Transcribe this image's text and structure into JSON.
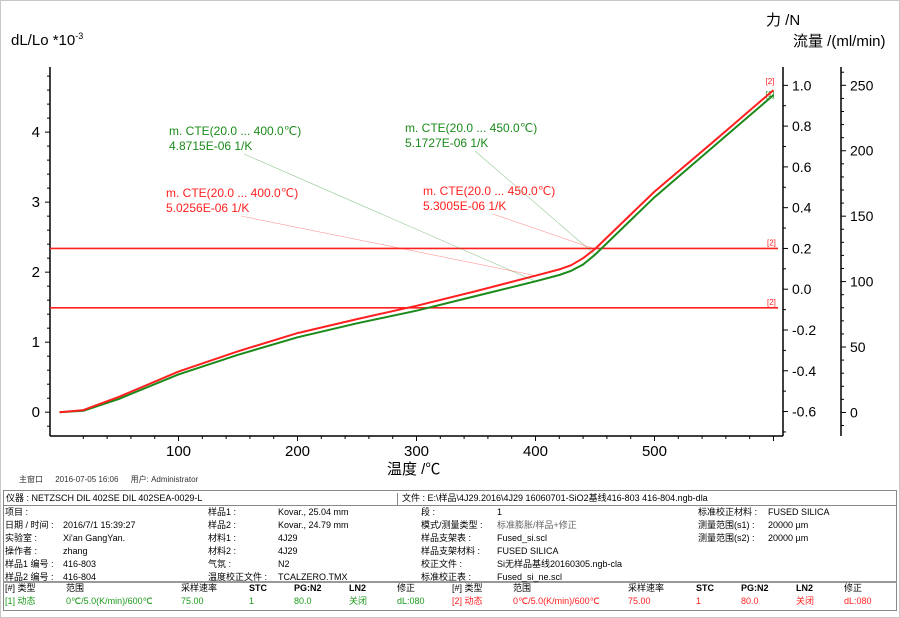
{
  "chart_data": {
    "type": "line",
    "xlabel": "温度 /℃",
    "ylabel": "dL/Lo *10-3",
    "ylabel_base": "dL/Lo *10",
    "ylabel_exp": "-3",
    "xlim": [
      -8,
      608
    ],
    "ylim": [
      -0.34,
      4.93
    ],
    "x_ticks": [
      100,
      200,
      300,
      400,
      500
    ],
    "y_ticks": [
      0,
      1,
      2,
      3,
      4
    ],
    "grid": false,
    "right_axes": [
      {
        "label": "力 /N",
        "lim": [
          -0.72,
          1.09
        ],
        "ticks": [
          "1.0",
          "0.8",
          "0.6",
          "0.4",
          "0.2",
          "0.0",
          "-0.2",
          "-0.4",
          "-0.6"
        ],
        "tick_values": [
          1.0,
          0.8,
          0.6,
          0.4,
          0.2,
          0.0,
          -0.2,
          -0.4,
          -0.6
        ]
      },
      {
        "label": "流量 /(ml/min)",
        "lim": [
          -18,
          264
        ],
        "ticks": [
          "250",
          "200",
          "150",
          "100",
          "50",
          "0"
        ],
        "tick_values": [
          250,
          200,
          150,
          100,
          50,
          0
        ]
      }
    ],
    "series": [
      {
        "color": "#1a8a1a",
        "marker": "[1]",
        "x": [
          0,
          20,
          50,
          100,
          150,
          200,
          250,
          300,
          350,
          400,
          420,
          430,
          440,
          450,
          500,
          550,
          600
        ],
        "y": [
          0,
          0.02,
          0.19,
          0.54,
          0.82,
          1.07,
          1.27,
          1.45,
          1.66,
          1.87,
          1.96,
          2.02,
          2.11,
          2.25,
          3.07,
          3.8,
          4.53
        ]
      },
      {
        "color": "#ff2020",
        "marker": "[2]",
        "x": [
          0,
          20,
          50,
          100,
          150,
          200,
          250,
          300,
          350,
          400,
          420,
          430,
          440,
          450,
          500,
          550,
          600
        ],
        "y": [
          0,
          0.03,
          0.22,
          0.58,
          0.87,
          1.13,
          1.33,
          1.52,
          1.73,
          1.95,
          2.04,
          2.1,
          2.2,
          2.33,
          3.15,
          3.87,
          4.6
        ]
      }
    ],
    "reference_lines": [
      {
        "axis": "force",
        "value": 0.2,
        "color": "#ff2020",
        "marker": "[2]"
      },
      {
        "axis": "flow",
        "value": 80,
        "color": "#ff2020",
        "marker": "[2]"
      }
    ],
    "annotations": [
      {
        "line1": "m. CTE(20.0 ... 400.0℃)",
        "line2": "4.8715E-06 1/K",
        "color": "#1a8a1a",
        "at_x": 400,
        "series": 0
      },
      {
        "line1": "m. CTE(20.0 ... 400.0℃)",
        "line2": "5.0256E-06 1/K",
        "color": "#ff2020",
        "at_x": 400,
        "series": 1
      },
      {
        "line1": "m. CTE(20.0 ... 450.0℃)",
        "line2": "5.1727E-06 1/K",
        "color": "#1a8a1a",
        "at_x": 450,
        "series": 0
      },
      {
        "line1": "m. CTE(20.0 ... 450.0℃)",
        "line2": "5.3005E-06 1/K",
        "color": "#ff2020",
        "at_x": 450,
        "series": 1
      }
    ]
  },
  "footer": {
    "window": "主窗口",
    "datetime": "2016-07-05 16:06",
    "user": "用户: Administrator"
  },
  "info": {
    "instrument": "仪器 : NETZSCH DIL 402SE DIL 402SEA-0029-L",
    "file": "文件 : E:\\样品\\4J29.2016\\4J29 16060701-SiO2基线416-803 416-804.ngb-dla",
    "col1": [
      {
        "label": "项目 :",
        "value": ""
      },
      {
        "label": "日期 / 时间 :",
        "value": "2016/7/1 15:39:27"
      },
      {
        "label": "实验室 :",
        "value": "Xi'an GangYan."
      },
      {
        "label": "操作者 :",
        "value": "zhang"
      },
      {
        "label": "样品1 编号 :",
        "value": "416-803"
      },
      {
        "label": "样品2 编号 :",
        "value": "416-804"
      }
    ],
    "col2": [
      {
        "label": "样品1 :",
        "value": "Kovar., 25.04 mm"
      },
      {
        "label": "样品2 :",
        "value": "Kovar., 24.79 mm"
      },
      {
        "label": "材料1 :",
        "value": "4J29"
      },
      {
        "label": "材料2 :",
        "value": "4J29"
      },
      {
        "label": "气氛 :",
        "value": "N2"
      },
      {
        "label": "温度校正文件 :",
        "value": "TCALZERO.TMX"
      }
    ],
    "col3": [
      {
        "label": "段 :",
        "value": "1"
      },
      {
        "label": "模式/测量类型 :",
        "value": "标准膨胀/样品+修正"
      },
      {
        "label": "样品支架表 :",
        "value": "Fused_si.scl"
      },
      {
        "label": "样品支架材料 :",
        "value": "FUSED SILICA"
      },
      {
        "label": "校正文件 :",
        "value": "Si无样品基线20160305.ngb-cla"
      },
      {
        "label": "标准校正表 :",
        "value": "Fused_si_ne.scl"
      }
    ],
    "col4": [
      {
        "label": "标准校正材料 :",
        "value": "FUSED SILICA"
      },
      {
        "label": "测量范围(s1) :",
        "value": "20000 µm"
      },
      {
        "label": "测量范围(s2) :",
        "value": "20000 µm"
      }
    ]
  },
  "segments": {
    "headers": [
      "[#] 类型",
      "范围",
      "采样速率",
      "STC",
      "PG:N2",
      "LN2",
      "修正"
    ],
    "rows": [
      {
        "color": "#1a9a1a",
        "cells": [
          "[1] 动态",
          "0℃/5.0(K/min)/600℃",
          "75.00",
          "1",
          "80.0",
          "关闭",
          "dL:080"
        ]
      },
      {
        "color": "#ff2020",
        "cells": [
          "[2] 动态",
          "0℃/5.0(K/min)/600℃",
          "75.00",
          "1",
          "80.0",
          "关闭",
          "dL:080"
        ]
      }
    ]
  }
}
